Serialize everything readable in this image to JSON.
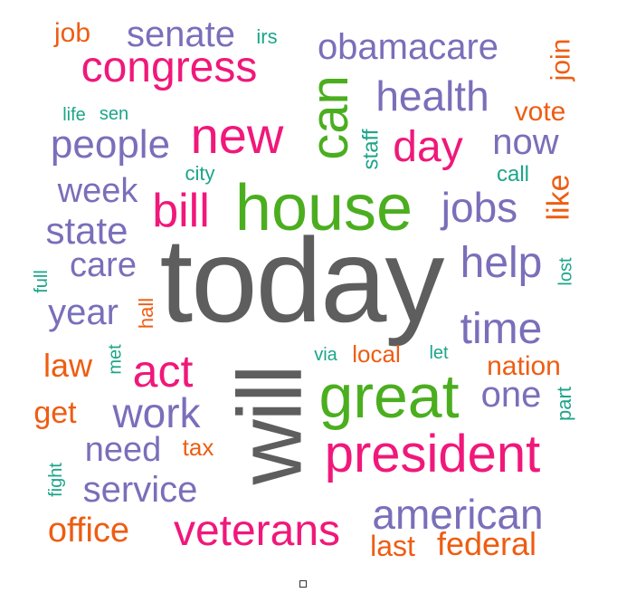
{
  "colors": {
    "gray": "#5e5e5e",
    "green": "#4bae1f",
    "magenta": "#f0187a",
    "purple": "#7a6fba",
    "orange": "#ee5d12",
    "teal": "#1ca58a"
  },
  "words": [
    {
      "text": "today",
      "color": "gray"
    },
    {
      "text": "will",
      "color": "gray"
    },
    {
      "text": "house",
      "color": "green"
    },
    {
      "text": "great",
      "color": "green"
    },
    {
      "text": "can",
      "color": "green"
    },
    {
      "text": "president",
      "color": "magenta"
    },
    {
      "text": "new",
      "color": "magenta"
    },
    {
      "text": "congress",
      "color": "magenta"
    },
    {
      "text": "day",
      "color": "magenta"
    },
    {
      "text": "bill",
      "color": "magenta"
    },
    {
      "text": "act",
      "color": "magenta"
    },
    {
      "text": "veterans",
      "color": "magenta"
    },
    {
      "text": "senate",
      "color": "purple"
    },
    {
      "text": "obamacare",
      "color": "purple"
    },
    {
      "text": "health",
      "color": "purple"
    },
    {
      "text": "people",
      "color": "purple"
    },
    {
      "text": "now",
      "color": "purple"
    },
    {
      "text": "week",
      "color": "purple"
    },
    {
      "text": "state",
      "color": "purple"
    },
    {
      "text": "jobs",
      "color": "purple"
    },
    {
      "text": "care",
      "color": "purple"
    },
    {
      "text": "help",
      "color": "purple"
    },
    {
      "text": "year",
      "color": "purple"
    },
    {
      "text": "time",
      "color": "purple"
    },
    {
      "text": "work",
      "color": "purple"
    },
    {
      "text": "one",
      "color": "purple"
    },
    {
      "text": "need",
      "color": "purple"
    },
    {
      "text": "service",
      "color": "purple"
    },
    {
      "text": "american",
      "color": "purple"
    },
    {
      "text": "job",
      "color": "orange"
    },
    {
      "text": "join",
      "color": "orange"
    },
    {
      "text": "vote",
      "color": "orange"
    },
    {
      "text": "like",
      "color": "orange"
    },
    {
      "text": "hall",
      "color": "orange"
    },
    {
      "text": "law",
      "color": "orange"
    },
    {
      "text": "local",
      "color": "orange"
    },
    {
      "text": "nation",
      "color": "orange"
    },
    {
      "text": "get",
      "color": "orange"
    },
    {
      "text": "tax",
      "color": "orange"
    },
    {
      "text": "office",
      "color": "orange"
    },
    {
      "text": "last",
      "color": "orange"
    },
    {
      "text": "federal",
      "color": "orange"
    },
    {
      "text": "irs",
      "color": "teal"
    },
    {
      "text": "life",
      "color": "teal"
    },
    {
      "text": "sen",
      "color": "teal"
    },
    {
      "text": "staff",
      "color": "teal"
    },
    {
      "text": "city",
      "color": "teal"
    },
    {
      "text": "call",
      "color": "teal"
    },
    {
      "text": "full",
      "color": "teal"
    },
    {
      "text": "lost",
      "color": "teal"
    },
    {
      "text": "met",
      "color": "teal"
    },
    {
      "text": "via",
      "color": "teal"
    },
    {
      "text": "let",
      "color": "teal"
    },
    {
      "text": "part",
      "color": "teal"
    },
    {
      "text": "fight",
      "color": "teal"
    }
  ]
}
